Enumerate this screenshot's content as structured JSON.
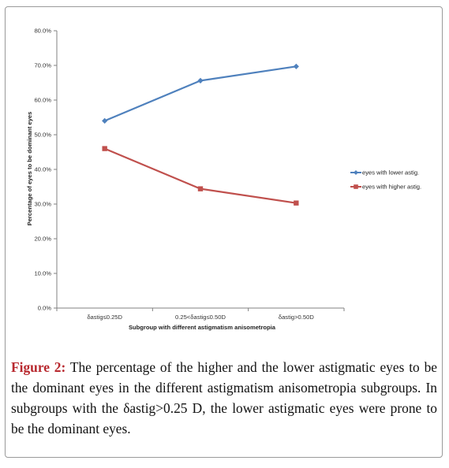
{
  "chart_data": {
    "type": "line",
    "xlabel": "Subgroup with different astigmatism anisometropia",
    "ylabel": "Percentage of eyes to be dominant eyes",
    "ylim": [
      0,
      80
    ],
    "y_ticks": [
      "0.0%",
      "10.0%",
      "20.0%",
      "30.0%",
      "40.0%",
      "50.0%",
      "60.0%",
      "70.0%",
      "80.0%"
    ],
    "categories": [
      "δastig≤0.25D",
      "0.25<δastig≤0.50D",
      "δastig>0.50D"
    ],
    "grid": false,
    "legend_position": "right",
    "series": [
      {
        "name": "eyes with lower astig.",
        "values": [
          54.0,
          65.6,
          69.7
        ],
        "color": "#4f81bd",
        "marker": "diamond"
      },
      {
        "name": "eyes with higher astig.",
        "values": [
          46.0,
          34.4,
          30.3
        ],
        "color": "#c0504d",
        "marker": "square"
      }
    ]
  },
  "caption": {
    "label": "Figure 2:",
    "text": " The percentage of the higher and the lower astigmatic eyes to be the dominant eyes in the different astigmatism anisometropia subgroups. In subgroups with the δastig>0.25 D, the lower astigmatic eyes were prone to be the dominant eyes."
  }
}
